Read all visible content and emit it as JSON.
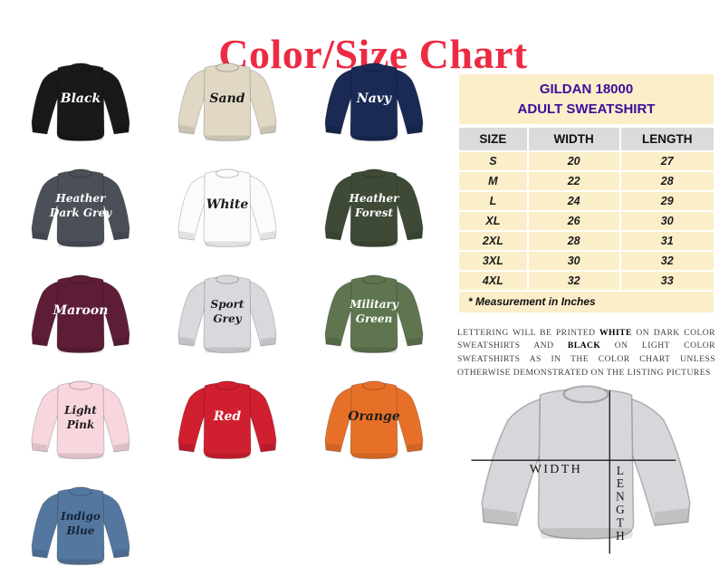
{
  "page": {
    "title": "Color/Size Chart",
    "title_color": "#ec2b43",
    "background": "#ffffff"
  },
  "colors": [
    {
      "name": "Black",
      "lines": [
        "Black"
      ],
      "body": "#191919",
      "label_color": "#ffffff"
    },
    {
      "name": "Sand",
      "lines": [
        "Sand"
      ],
      "body": "#e0d8c5",
      "label_color": "#1a1a1a"
    },
    {
      "name": "Navy",
      "lines": [
        "Navy"
      ],
      "body": "#1a2a55",
      "label_color": "#ffffff"
    },
    {
      "name": "Heather Dark Grey",
      "lines": [
        "Heather",
        "Dark Grey"
      ],
      "body": "#4a4f58",
      "label_color": "#ffffff"
    },
    {
      "name": "White",
      "lines": [
        "White"
      ],
      "body": "#fbfbfb",
      "label_color": "#1a1a1a"
    },
    {
      "name": "Heather Forest",
      "lines": [
        "Heather",
        "Forest"
      ],
      "body": "#3e4a36",
      "label_color": "#ffffff"
    },
    {
      "name": "Maroon",
      "lines": [
        "Maroon"
      ],
      "body": "#5e1d37",
      "label_color": "#ffffff"
    },
    {
      "name": "Sport Grey",
      "lines": [
        "Sport",
        "Grey"
      ],
      "body": "#d9d9dd",
      "label_color": "#1f1f1f"
    },
    {
      "name": "Military Green",
      "lines": [
        "Military",
        "Green"
      ],
      "body": "#5e7550",
      "label_color": "#ffffff"
    },
    {
      "name": "Light Pink",
      "lines": [
        "Light",
        "Pink"
      ],
      "body": "#f7d6de",
      "label_color": "#1f1f1f"
    },
    {
      "name": "Red",
      "lines": [
        "Red"
      ],
      "body": "#d01f2f",
      "label_color": "#ffffff"
    },
    {
      "name": "Orange",
      "lines": [
        "Orange"
      ],
      "body": "#e77029",
      "label_color": "#1d1d1d"
    },
    {
      "name": "Indigo Blue",
      "lines": [
        "Indigo",
        "Blue"
      ],
      "body": "#54779f",
      "label_color": "#162338"
    }
  ],
  "size_panel": {
    "title_lines": [
      "GILDAN 18000",
      "ADULT SWEATSHIRT"
    ],
    "title_color": "#3a0d9e",
    "panel_bg": "#fbefc9",
    "header_bg": "#dbdbdb",
    "columns": [
      "SIZE",
      "WIDTH",
      "LENGTH"
    ],
    "rows": [
      [
        "S",
        "20",
        "27"
      ],
      [
        "M",
        "22",
        "28"
      ],
      [
        "L",
        "24",
        "29"
      ],
      [
        "XL",
        "26",
        "30"
      ],
      [
        "2XL",
        "28",
        "31"
      ],
      [
        "3XL",
        "30",
        "32"
      ],
      [
        "4XL",
        "32",
        "33"
      ]
    ],
    "footnote": "* Measurement in Inches"
  },
  "printing_note": {
    "segments": [
      {
        "text": "LETTERING WILL BE PRINTED ",
        "bold": false
      },
      {
        "text": "WHITE",
        "bold": true
      },
      {
        "text": " ON DARK COLOR SWEATSHIRTS AND ",
        "bold": false
      },
      {
        "text": "BLACK",
        "bold": true
      },
      {
        "text": " ON LIGHT COLOR SWEATSHIRTS AS IN THE COLOR CHART UNLESS OTHERWISE DEMONSTRATED ON THE LISTING PICTURES",
        "bold": false
      }
    ]
  },
  "diagram": {
    "width_label": "WIDTH",
    "length_label": "LENGTH",
    "garment_color": "#d7d7db"
  },
  "chart_data": {
    "type": "table",
    "title": "GILDAN 18000 ADULT SWEATSHIRT",
    "columns": [
      "SIZE",
      "WIDTH",
      "LENGTH"
    ],
    "rows": [
      [
        "S",
        20,
        27
      ],
      [
        "M",
        22,
        28
      ],
      [
        "L",
        24,
        29
      ],
      [
        "XL",
        26,
        30
      ],
      [
        "2XL",
        28,
        31
      ],
      [
        "3XL",
        30,
        32
      ],
      [
        "4XL",
        32,
        33
      ]
    ],
    "units": "inches"
  }
}
